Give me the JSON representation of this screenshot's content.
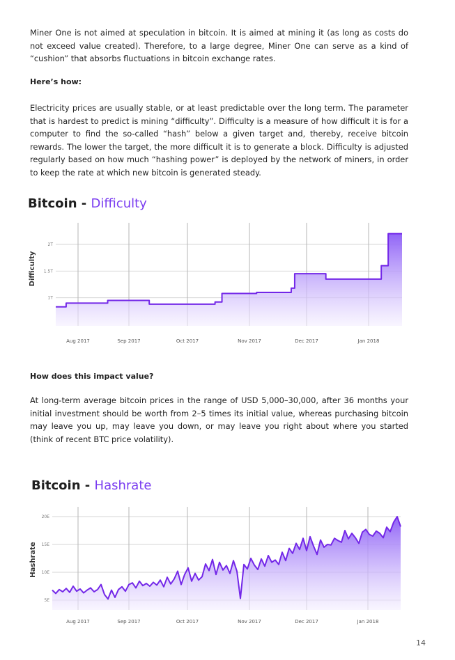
{
  "paragraphs": {
    "intro": "Miner One is not aimed at speculation in bitcoin. It is aimed at mining it (as long as costs do not exceed value created). Therefore, to a large degree, Miner One can serve as a kind of “cushion” that absorbs fluctuations in bitcoin exchange rates.",
    "electricity": "Electricity prices are usually stable, or at least predictable over the long term. The parameter that is hardest to predict is mining “difficulty”. Difficulty is a measure of how difficult it is for a computer to find the so-called “hash” below a given target and, thereby, receive bitcoin rewards. The lower the target, the more difficult it is to generate a block. Difficulty is adjust­ed regularly based on how much “hashing power” is deployed by the network of miners, in order to keep the rate at which new bitcoin is generated steady.",
    "value": "At long-term average bitcoin prices in the range of USD 5,000–30,000, after 36 months your initial investment should be worth from 2–5 times its initial value, whereas purchasing bitcoin may leave you up, may leave you down, or may leave you right about where you started (think of recent BTC price volatility)."
  },
  "headings": {
    "how": "Here’s how:",
    "impact": "How does this impact value?"
  },
  "page_number": "14",
  "colors": {
    "accent": "#7a3cf0",
    "line": "#7327e8",
    "fill_top": "#8b5cf6",
    "fill_bottom": "#f4efff"
  },
  "chart_data": [
    {
      "type": "area",
      "title_prefix": "Bitcoin -",
      "title_accent": "Difficulty",
      "ylabel": "Difficulty",
      "x_labels": [
        "Aug 2017",
        "Sep 2017",
        "Oct 2017",
        "Nov 2017",
        "Dec 2017",
        "Jan 2018"
      ],
      "y_ticks": [
        {
          "label": "1T",
          "value": 1.0
        },
        {
          "label": "1.5T",
          "value": 1.5
        },
        {
          "label": "2T",
          "value": 2.0
        }
      ],
      "ylim": [
        0.5,
        2.3
      ],
      "xlim": [
        0,
        1
      ],
      "grid": true,
      "series": [
        {
          "x": [
            0,
            0.03,
            0.12,
            0.15,
            0.22,
            0.27,
            0.33,
            0.35,
            0.46,
            0.48,
            0.57,
            0.58,
            0.68,
            0.69,
            0.77,
            0.78,
            0.83,
            0.84,
            0.93,
            0.94,
            0.95,
            0.96,
            1.0
          ],
          "y": [
            0.83,
            0.9,
            0.9,
            0.95,
            0.95,
            0.88,
            0.88,
            0.88,
            0.92,
            1.08,
            1.08,
            1.1,
            1.18,
            1.45,
            1.45,
            1.35,
            1.35,
            1.35,
            1.35,
            1.6,
            1.6,
            2.2,
            2.2
          ]
        }
      ]
    },
    {
      "type": "line",
      "title_prefix": "Bitcoin -",
      "title_accent": "Hashrate",
      "ylabel": "Hashrate",
      "x_labels": [
        "Aug 2017",
        "Sep 2017",
        "Oct 2017",
        "Nov 2017",
        "Dec 2017",
        "Jan 2018"
      ],
      "y_ticks": [
        {
          "label": "5E",
          "value": 5
        },
        {
          "label": "10E",
          "value": 10
        },
        {
          "label": "15E",
          "value": 15
        },
        {
          "label": "20E",
          "value": 20
        }
      ],
      "ylim": [
        3.5,
        21.5
      ],
      "xlim": [
        0,
        1
      ],
      "grid": true,
      "series": [
        {
          "x": [
            0,
            0.01,
            0.02,
            0.03,
            0.04,
            0.05,
            0.06,
            0.07,
            0.08,
            0.09,
            0.1,
            0.11,
            0.12,
            0.13,
            0.14,
            0.15,
            0.16,
            0.17,
            0.18,
            0.19,
            0.2,
            0.21,
            0.22,
            0.23,
            0.24,
            0.25,
            0.26,
            0.27,
            0.28,
            0.29,
            0.3,
            0.31,
            0.32,
            0.33,
            0.34,
            0.35,
            0.36,
            0.37,
            0.38,
            0.39,
            0.4,
            0.41,
            0.42,
            0.43,
            0.44,
            0.45,
            0.46,
            0.47,
            0.48,
            0.49,
            0.5,
            0.51,
            0.52,
            0.53,
            0.54,
            0.55,
            0.56,
            0.57,
            0.58,
            0.59,
            0.6,
            0.61,
            0.62,
            0.63,
            0.64,
            0.65,
            0.66,
            0.67,
            0.68,
            0.69,
            0.7,
            0.71,
            0.72,
            0.73,
            0.74,
            0.75,
            0.76,
            0.77,
            0.78,
            0.79,
            0.8,
            0.81,
            0.82,
            0.83,
            0.84,
            0.85,
            0.86,
            0.87,
            0.88,
            0.89,
            0.9,
            0.91,
            0.92,
            0.93,
            0.94,
            0.95,
            0.96,
            0.97,
            0.98,
            0.99,
            1.0
          ],
          "y": [
            6.8,
            6.2,
            6.9,
            6.5,
            7.1,
            6.4,
            7.5,
            6.6,
            7.0,
            6.3,
            6.8,
            7.2,
            6.5,
            6.9,
            7.8,
            6.0,
            5.2,
            6.8,
            5.5,
            6.9,
            7.4,
            6.6,
            7.8,
            8.1,
            7.2,
            8.4,
            7.6,
            8.0,
            7.5,
            8.2,
            7.7,
            8.6,
            7.4,
            9.1,
            7.9,
            8.8,
            10.2,
            7.8,
            9.6,
            10.8,
            8.4,
            9.8,
            8.6,
            9.2,
            11.5,
            10.3,
            12.3,
            9.6,
            11.8,
            10.4,
            11.2,
            9.8,
            12.1,
            10.2,
            5.3,
            11.4,
            10.6,
            12.5,
            11.3,
            10.5,
            12.4,
            11.1,
            13.0,
            11.8,
            12.2,
            11.4,
            13.6,
            12.1,
            14.3,
            13.4,
            15.2,
            14.1,
            16.1,
            13.9,
            16.4,
            14.7,
            13.2,
            15.8,
            14.5,
            15.0,
            14.9,
            16.1,
            15.7,
            15.4,
            17.5,
            16.0,
            17.0,
            16.2,
            15.2,
            17.2,
            17.7,
            16.8,
            16.5,
            17.4,
            17.0,
            16.2,
            18.1,
            17.3,
            19.0,
            20.0,
            18.2
          ]
        }
      ]
    }
  ]
}
